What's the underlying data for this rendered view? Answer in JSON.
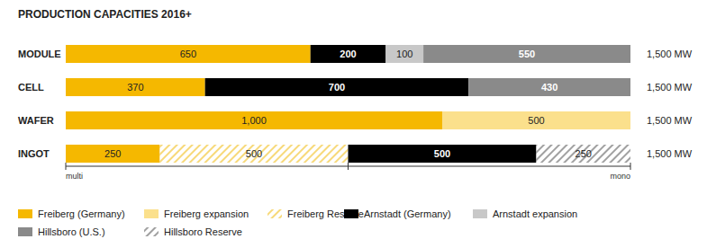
{
  "chart_data": {
    "type": "bar",
    "title": "PRODUCTION CAPACITIES 2016+",
    "orientation": "horizontal",
    "stacked": true,
    "data_labels": true,
    "categories": [
      "MODULE",
      "CELL",
      "WAFER",
      "INGOT"
    ],
    "total_labels": [
      "1,500 MW",
      "1,500 MW",
      "1,500 MW",
      "1,500 MW"
    ],
    "xlim": [
      0,
      1500
    ],
    "xticks": [
      {
        "value": 0,
        "label": "multi"
      },
      {
        "value": 750,
        "label": null
      },
      {
        "value": 1500,
        "label": "mono"
      }
    ],
    "series": [
      {
        "name": "Freiberg (Germany)",
        "color": "#f5b800",
        "values": [
          650,
          370,
          1000,
          250
        ],
        "value_labels": [
          "650",
          "370",
          "1,000",
          "250"
        ]
      },
      {
        "name": "Freiberg expansion",
        "color": "#fbe08c",
        "values": [
          null,
          null,
          500,
          null
        ]
      },
      {
        "name": "Freiberg Reserve",
        "color": "#f7d979",
        "line_style": "hatched",
        "values": [
          null,
          null,
          null,
          500
        ]
      },
      {
        "name": "Arnstadt (Germany)",
        "color": "#000000",
        "values": [
          200,
          700,
          null,
          500
        ]
      },
      {
        "name": "Arnstadt expansion",
        "color": "#c8c8c8",
        "values": [
          100,
          null,
          null,
          null
        ]
      },
      {
        "name": "Hillsboro (U.S.)",
        "color": "#8a8a8a",
        "values": [
          550,
          430,
          null,
          null
        ]
      },
      {
        "name": "Hillsboro Reserve",
        "color": "#a0a0a0",
        "line_style": "hatched",
        "values": [
          null,
          null,
          null,
          250
        ]
      }
    ]
  }
}
